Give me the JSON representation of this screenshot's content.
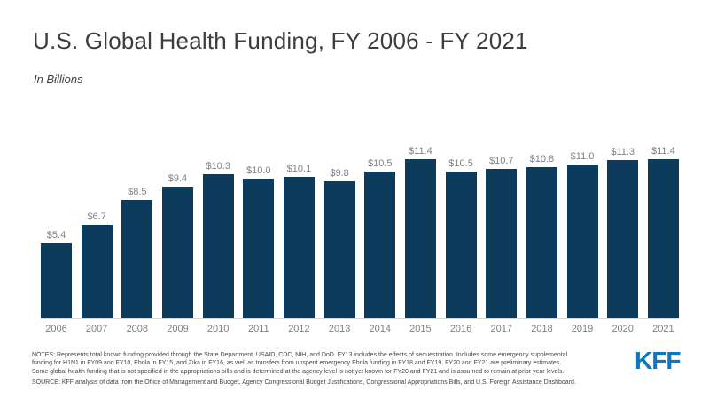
{
  "page": {
    "title": "U.S. Global Health Funding, FY 2006 - FY 2021",
    "subtitle": "In Billions"
  },
  "chart_data": {
    "type": "bar",
    "title": "U.S. Global Health Funding, FY 2006 - FY 2021",
    "subtitle": "In Billions",
    "xlabel": "",
    "ylabel": "",
    "categories": [
      "2006",
      "2007",
      "2008",
      "2009",
      "2010",
      "2011",
      "2012",
      "2013",
      "2014",
      "2015",
      "2016",
      "2017",
      "2018",
      "2019",
      "2020",
      "2021"
    ],
    "values": [
      5.4,
      6.7,
      8.5,
      9.4,
      10.3,
      10.0,
      10.1,
      9.8,
      10.5,
      11.4,
      10.5,
      10.7,
      10.8,
      11.0,
      11.3,
      11.4
    ],
    "bar_labels": [
      "$5.4",
      "$6.7",
      "$8.5",
      "$9.4",
      "$10.3",
      "$10.0",
      "$10.1",
      "$9.8",
      "$10.5",
      "$11.4",
      "$10.5",
      "$10.7",
      "$10.8",
      "$11.0",
      "$11.3",
      "$11.4"
    ],
    "ylim": [
      0,
      12
    ],
    "grid": false,
    "legend": false,
    "bar_color": "#0d3b5c",
    "value_label_color": "#7f7f7f",
    "axis_label_color": "#7f7f7f",
    "baseline_color": "#d9d9d9"
  },
  "footer": {
    "notes_lines": [
      "NOTES: Represents total known funding provided through the State Department, USAID, CDC, NIH, and DoD. FY13 includes the effects of sequestration. Includes some emergency supplemental",
      "funding for H1N1 in FY09 and FY10, Ebola in FY15, and Zika in FY16, as well as transfers from unspent emergency Ebola funding in FY18 and FY19. FY20 and FY21 are preliminary estimates.",
      "Some global health funding that is not specified in the appropriations bills and is determined at the agency level is not yet known for FY20 and FY21 and is assumed to remain at prior year levels."
    ],
    "source": "SOURCE: KFF analysis of data from the Office of Management and Budget, Agency Congressional Budget Justifications, Congressional Appropriations Bills, and U.S. Foreign Assistance Dashboard.",
    "logo_text": "KFF",
    "logo_color": "#0e76bc"
  }
}
